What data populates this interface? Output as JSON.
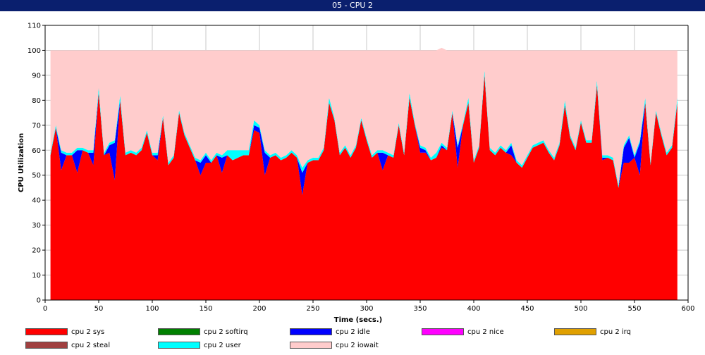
{
  "window": {
    "title": "05 - CPU 2"
  },
  "chart_data": {
    "type": "area",
    "stacked": true,
    "title": "05 - CPU 2",
    "xlabel": "Time (secs.)",
    "ylabel": "CPU Utilization",
    "xlim": [
      0,
      600
    ],
    "ylim": [
      0,
      110
    ],
    "xticks": [
      0,
      50,
      100,
      150,
      200,
      250,
      300,
      350,
      400,
      450,
      500,
      550,
      600
    ],
    "yticks": [
      0,
      10,
      20,
      30,
      40,
      50,
      60,
      70,
      80,
      90,
      100,
      110
    ],
    "grid": true,
    "legend_position": "bottom",
    "x": [
      5,
      10,
      15,
      20,
      25,
      30,
      35,
      40,
      45,
      50,
      55,
      60,
      65,
      70,
      75,
      80,
      85,
      90,
      95,
      100,
      105,
      110,
      115,
      120,
      125,
      130,
      135,
      140,
      145,
      150,
      155,
      160,
      165,
      170,
      175,
      180,
      185,
      190,
      195,
      200,
      205,
      210,
      215,
      220,
      225,
      230,
      235,
      240,
      245,
      250,
      255,
      260,
      265,
      270,
      275,
      280,
      285,
      290,
      295,
      300,
      305,
      310,
      315,
      320,
      325,
      330,
      335,
      340,
      345,
      350,
      355,
      360,
      365,
      370,
      375,
      380,
      385,
      390,
      395,
      400,
      405,
      410,
      415,
      420,
      425,
      430,
      435,
      440,
      445,
      450,
      455,
      460,
      465,
      470,
      475,
      480,
      485,
      490,
      495,
      500,
      505,
      510,
      515,
      520,
      525,
      530,
      535,
      540,
      545,
      550,
      555,
      560,
      565,
      570,
      575,
      580,
      585,
      590
    ],
    "series": [
      {
        "name": "cpu 2 sys",
        "color": "#ff0000",
        "values": [
          58,
          69,
          52,
          58,
          58,
          51,
          60,
          59,
          54,
          83,
          58,
          59,
          48,
          80,
          58,
          59,
          58,
          60,
          67,
          58,
          56,
          73,
          54,
          57,
          75,
          66,
          61,
          56,
          50,
          55,
          55,
          58,
          51,
          58,
          56,
          57,
          58,
          58,
          68,
          67,
          50,
          57,
          58,
          56,
          57,
          59,
          57,
          42,
          55,
          56,
          56,
          60,
          79,
          72,
          58,
          61,
          57,
          61,
          72,
          64,
          57,
          59,
          52,
          58,
          57,
          70,
          58,
          81,
          70,
          59,
          59,
          56,
          57,
          61,
          60,
          75,
          53,
          70,
          79,
          55,
          61,
          90,
          60,
          58,
          61,
          59,
          58,
          55,
          53,
          57,
          61,
          62,
          63,
          59,
          56,
          62,
          78,
          65,
          60,
          71,
          63,
          63,
          86,
          56,
          57,
          56,
          45,
          55,
          55,
          57,
          50,
          79,
          54,
          75,
          66,
          58,
          61,
          79
        ]
      },
      {
        "name": "cpu 2 softirq",
        "color": "#008000",
        "values": [
          0,
          0,
          0,
          0,
          0,
          0,
          0,
          0,
          0,
          0,
          0,
          0,
          0,
          0,
          0,
          0,
          0,
          0,
          0,
          0,
          0,
          0,
          0,
          0,
          0,
          0,
          0,
          0,
          0,
          0,
          0,
          0,
          0,
          0,
          0,
          0,
          0,
          0,
          0,
          0,
          0,
          0,
          0,
          0,
          0,
          0,
          0,
          0,
          0,
          0,
          0,
          0,
          0,
          0,
          0,
          0,
          0,
          0,
          0,
          0,
          0,
          0,
          0,
          0,
          0,
          0,
          0,
          0,
          0,
          0,
          0,
          0,
          0,
          0,
          0,
          0,
          0,
          0,
          0,
          0,
          0,
          0,
          0,
          0,
          0,
          0,
          0,
          0,
          0,
          0,
          0,
          0,
          0,
          0,
          0,
          0,
          0,
          0,
          0,
          0,
          0,
          0,
          0,
          0,
          0,
          0,
          0,
          0,
          0,
          0,
          0,
          0,
          0,
          0,
          0,
          0,
          0,
          0
        ]
      },
      {
        "name": "cpu 2 idle",
        "color": "#0000ff",
        "values": [
          0,
          0,
          7,
          0,
          0,
          9,
          0,
          0,
          5,
          0,
          0,
          3,
          15,
          0,
          0,
          0,
          0,
          0,
          0,
          0,
          2,
          0,
          0,
          0,
          0,
          0,
          0,
          0,
          5,
          3,
          0,
          0,
          6,
          0,
          0,
          0,
          0,
          0,
          2,
          2,
          9,
          0,
          0,
          0,
          0,
          0,
          0,
          9,
          0,
          0,
          0,
          0,
          0,
          0,
          0,
          0,
          0,
          0,
          0,
          0,
          0,
          0,
          7,
          0,
          0,
          0,
          0,
          0,
          0,
          2,
          1,
          0,
          0,
          1,
          0,
          0,
          8,
          0,
          0,
          0,
          0,
          0,
          0,
          0,
          0,
          0,
          4,
          0,
          0,
          0,
          0,
          0,
          0,
          0,
          0,
          0,
          0,
          0,
          0,
          0,
          0,
          0,
          0,
          1,
          0,
          0,
          0,
          6,
          10,
          0,
          13,
          0,
          0,
          0,
          0,
          0,
          0,
          0
        ]
      },
      {
        "name": "cpu 2 nice",
        "color": "#ff00ff",
        "values": [
          0,
          0,
          0,
          0,
          0,
          0,
          0,
          0,
          0,
          0,
          0,
          0,
          0,
          0,
          0,
          0,
          0,
          0,
          0,
          0,
          0,
          0,
          0,
          0,
          0,
          0,
          0,
          0,
          0,
          0,
          0,
          0,
          0,
          0,
          0,
          0,
          0,
          0,
          0,
          0,
          0,
          0,
          0,
          0,
          0,
          0,
          0,
          0,
          0,
          0,
          0,
          0,
          0,
          0,
          0,
          0,
          0,
          0,
          0,
          0,
          0,
          0,
          0,
          0,
          0,
          0,
          0,
          0,
          0,
          0,
          0,
          0,
          0,
          0,
          0,
          0,
          0,
          0,
          0,
          0,
          0,
          0,
          0,
          0,
          0,
          0,
          0,
          0,
          0,
          0,
          0,
          0,
          0,
          0,
          0,
          0,
          0,
          0,
          0,
          0,
          0,
          0,
          0,
          0,
          0,
          0,
          0,
          0,
          0,
          0,
          0,
          0,
          0,
          0,
          0,
          0,
          0,
          0
        ]
      },
      {
        "name": "cpu 2 irq",
        "color": "#e0a000",
        "values": [
          0,
          0,
          0,
          0,
          0,
          0,
          0,
          0,
          0,
          0,
          0,
          0,
          0,
          0,
          0,
          0,
          0,
          0,
          0,
          0,
          0,
          0,
          0,
          0,
          0,
          0,
          0,
          0,
          0,
          0,
          0,
          0,
          0,
          0,
          0,
          0,
          0,
          0,
          0,
          0,
          0,
          0,
          0,
          0,
          0,
          0,
          0,
          0,
          0,
          0,
          0,
          0,
          0,
          0,
          0,
          0,
          0,
          0,
          0,
          0,
          0,
          0,
          0,
          0,
          0,
          0,
          0,
          0,
          0,
          0,
          0,
          0,
          0,
          0,
          0,
          0,
          0,
          0,
          0,
          0,
          0,
          0,
          0,
          0,
          0,
          0,
          0,
          0,
          0,
          0,
          0,
          0,
          0,
          0,
          0,
          0,
          0,
          0,
          0,
          0,
          0,
          0,
          0,
          0,
          0,
          0,
          0,
          0,
          0,
          0,
          0,
          0,
          0,
          0,
          0,
          0,
          0,
          0
        ]
      },
      {
        "name": "cpu 2 steal",
        "color": "#a04040",
        "values": [
          0,
          0,
          0,
          0,
          0,
          0,
          0,
          0,
          0,
          0,
          0,
          0,
          0,
          0,
          0,
          0,
          0,
          0,
          0,
          0,
          0,
          0,
          0,
          0,
          0,
          0,
          0,
          0,
          0,
          0,
          0,
          0,
          0,
          0,
          0,
          0,
          0,
          0,
          0,
          0,
          0,
          0,
          0,
          0,
          0,
          0,
          0,
          0,
          0,
          0,
          0,
          0,
          0,
          0,
          0,
          0,
          0,
          0,
          0,
          0,
          0,
          0,
          0,
          0,
          0,
          0,
          0,
          0,
          0,
          0,
          0,
          0,
          0,
          0,
          0,
          0,
          0,
          0,
          0,
          0,
          0,
          0,
          0,
          0,
          0,
          0,
          0,
          0,
          0,
          0,
          0,
          0,
          0,
          0,
          0,
          0,
          0,
          0,
          0,
          0,
          0,
          0,
          0,
          0,
          0,
          0,
          0,
          0,
          0,
          0,
          0,
          0,
          0,
          0,
          0,
          0,
          0,
          0
        ]
      },
      {
        "name": "cpu 2 user",
        "color": "#00ffff",
        "values": [
          1,
          1,
          1,
          1,
          1,
          1,
          1,
          1,
          1,
          2,
          1,
          1,
          1,
          2,
          1,
          1,
          1,
          1,
          1,
          1,
          1,
          1,
          1,
          1,
          1,
          1,
          1,
          1,
          1,
          1,
          1,
          1,
          1,
          2,
          4,
          3,
          2,
          2,
          2,
          1,
          1,
          1,
          1,
          1,
          1,
          1,
          1,
          2,
          1,
          1,
          1,
          1,
          2,
          1,
          1,
          1,
          1,
          1,
          1,
          1,
          1,
          1,
          1,
          1,
          1,
          1,
          1,
          2,
          1,
          1,
          1,
          1,
          2,
          1,
          1,
          1,
          1,
          1,
          2,
          1,
          1,
          2,
          1,
          1,
          1,
          1,
          1,
          1,
          1,
          1,
          1,
          1,
          1,
          1,
          1,
          1,
          2,
          1,
          1,
          1,
          1,
          1,
          2,
          1,
          1,
          1,
          1,
          1,
          1,
          1,
          1,
          2,
          1,
          1,
          1,
          1,
          1,
          2
        ]
      },
      {
        "name": "cpu 2 iowait",
        "color": "#ffcccc",
        "values": [
          41,
          30,
          40,
          41,
          41,
          39,
          39,
          40,
          40,
          15,
          41,
          37,
          36,
          18,
          41,
          40,
          41,
          39,
          32,
          41,
          41,
          26,
          45,
          42,
          24,
          33,
          38,
          43,
          44,
          41,
          44,
          41,
          42,
          40,
          40,
          40,
          40,
          40,
          28,
          30,
          40,
          42,
          41,
          43,
          42,
          40,
          42,
          47,
          44,
          43,
          43,
          39,
          19,
          27,
          41,
          38,
          42,
          38,
          27,
          35,
          42,
          40,
          40,
          41,
          42,
          29,
          41,
          17,
          29,
          38,
          39,
          43,
          41,
          38,
          39,
          24,
          38,
          29,
          19,
          44,
          38,
          8,
          39,
          41,
          38,
          40,
          37,
          44,
          46,
          42,
          38,
          37,
          36,
          40,
          43,
          37,
          20,
          34,
          39,
          28,
          36,
          36,
          12,
          42,
          42,
          43,
          54,
          38,
          34,
          42,
          36,
          19,
          45,
          24,
          33,
          41,
          38,
          19
        ]
      }
    ]
  }
}
